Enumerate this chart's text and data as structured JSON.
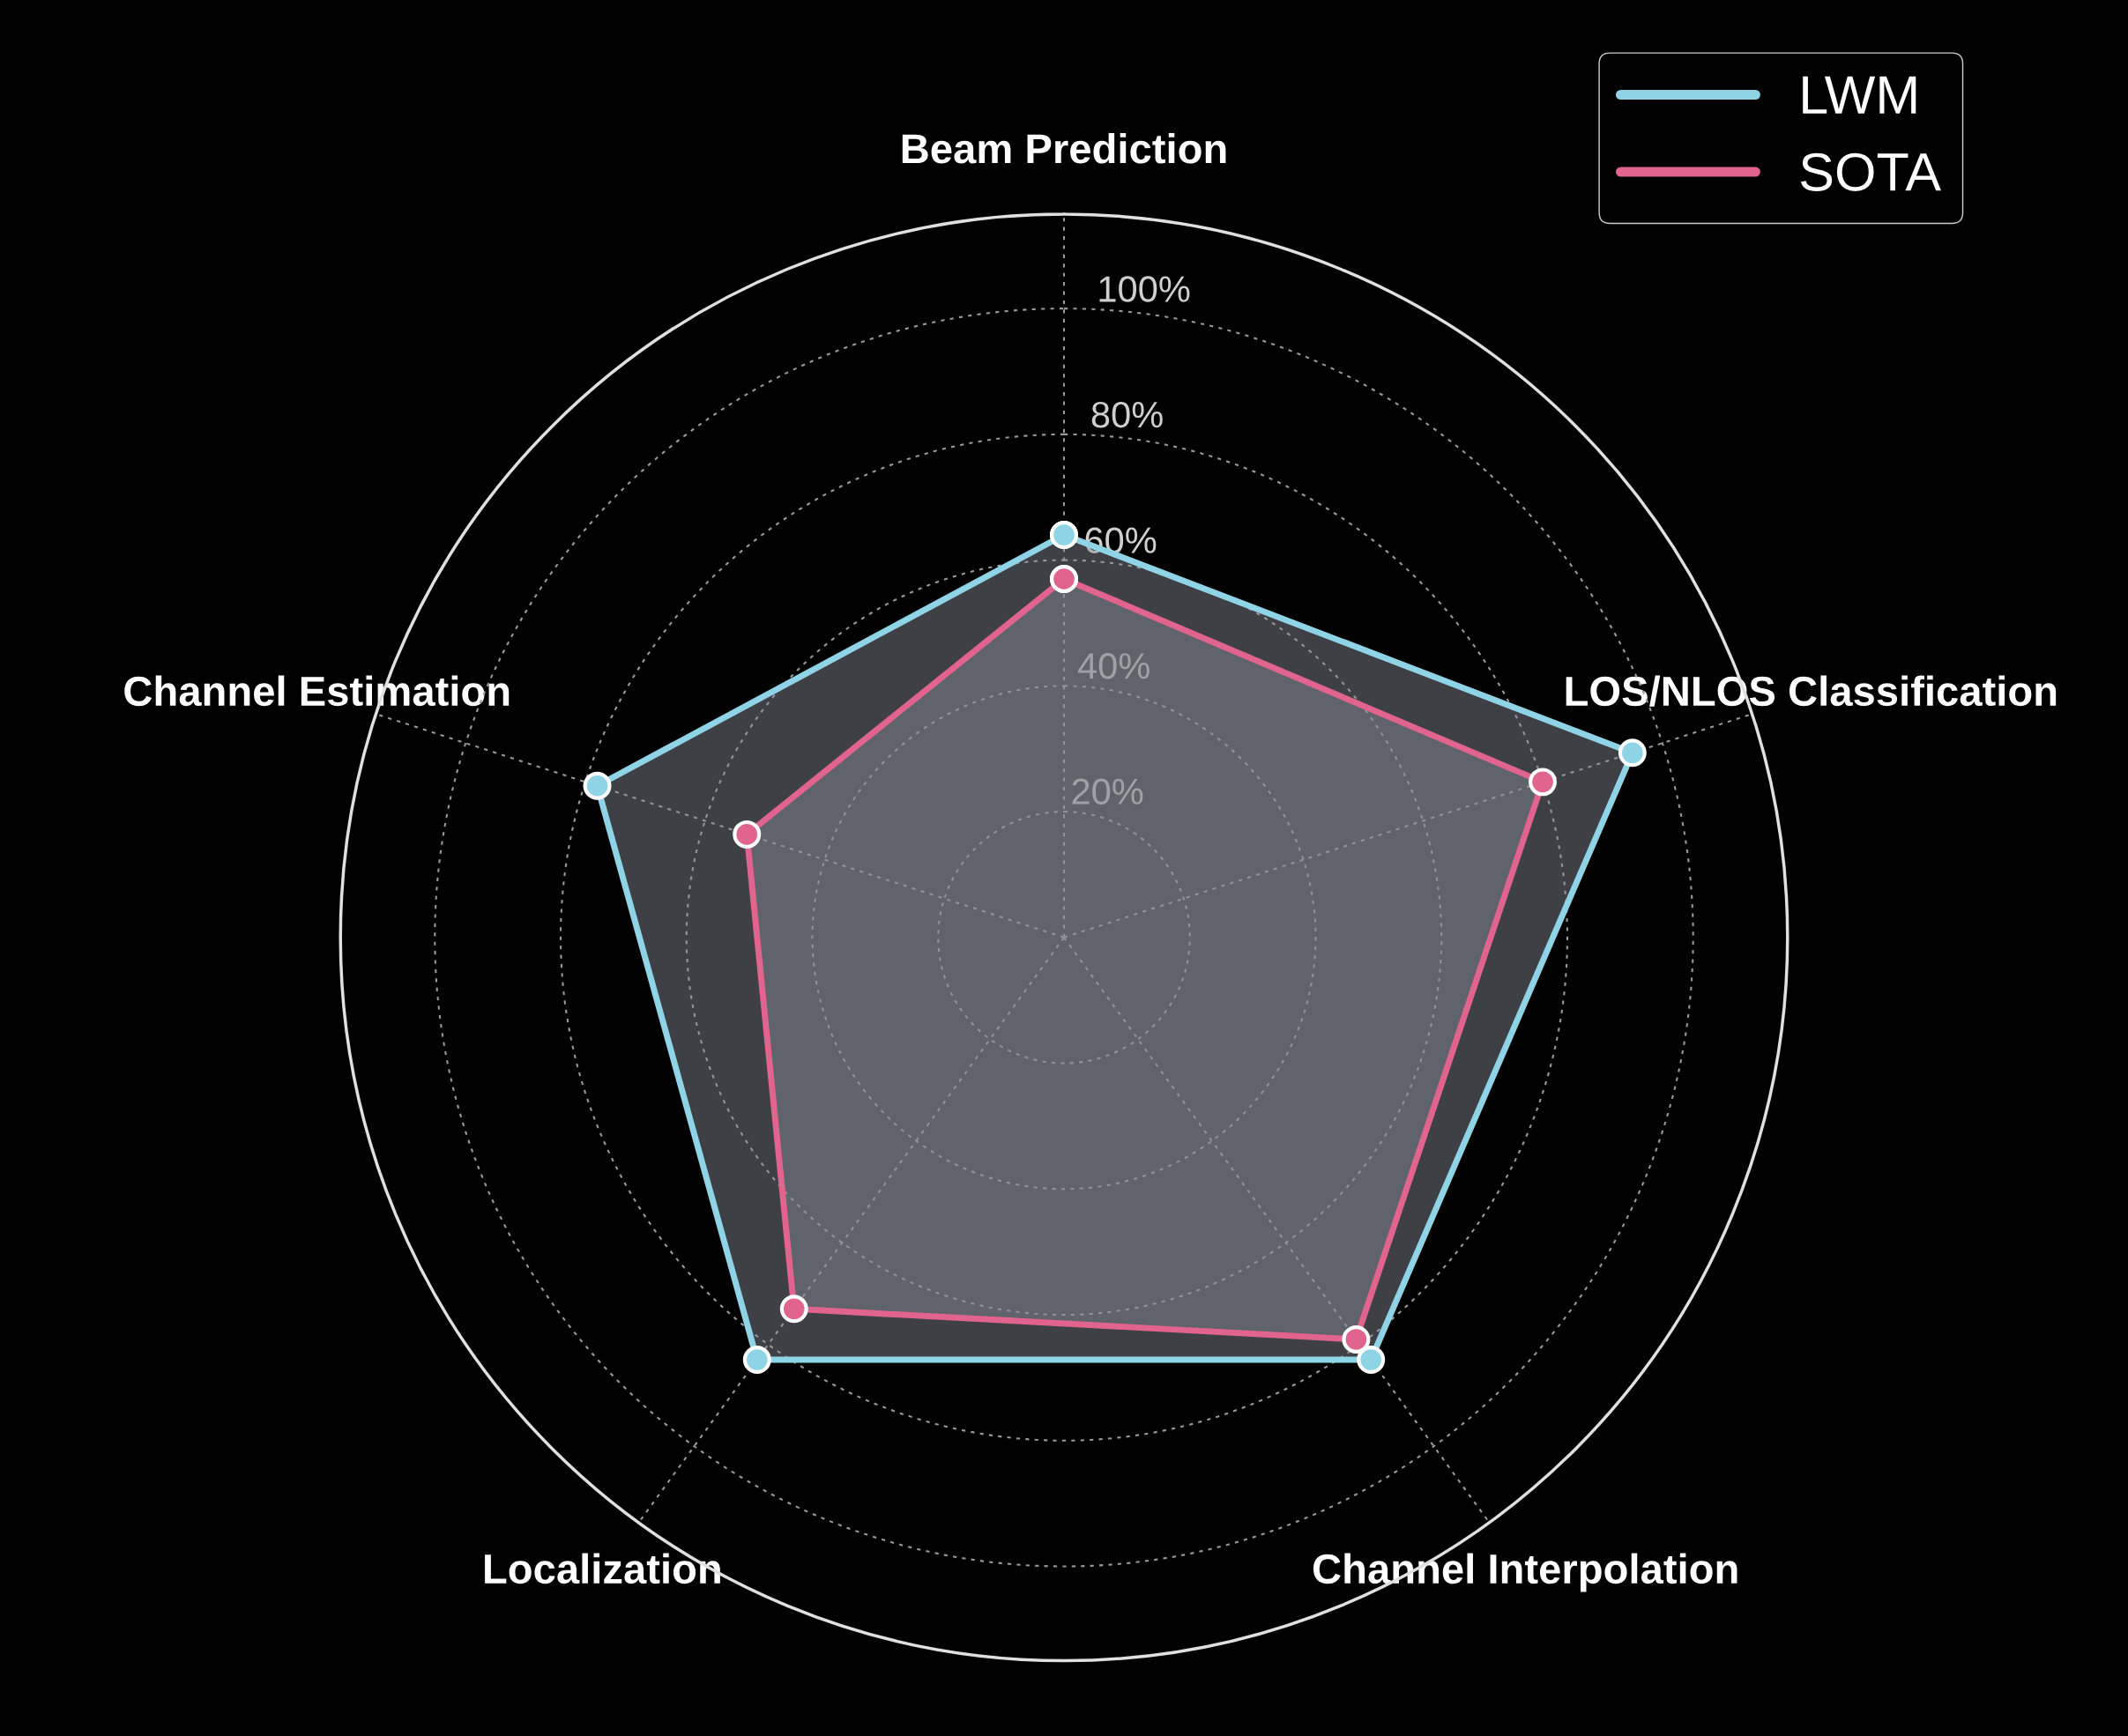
{
  "chart_data": {
    "type": "radar",
    "categories": [
      "Beam Prediction",
      "LOS/NLOS Classification",
      "Channel Interpolation",
      "Localization",
      "Channel Estimation"
    ],
    "series": [
      {
        "name": "LWM",
        "color": "#8fd3e6",
        "values": [
          64,
          95,
          83,
          83,
          78
        ]
      },
      {
        "name": "SOTA",
        "color": "#e0648e",
        "values": [
          57,
          80,
          79,
          73,
          53
        ]
      }
    ],
    "ylim": [
      0,
      115
    ],
    "yticks": [
      {
        "value": 20,
        "label": "20%"
      },
      {
        "value": 40,
        "label": "40%"
      },
      {
        "value": 60,
        "label": "60%"
      },
      {
        "value": 80,
        "label": "80%"
      },
      {
        "value": 100,
        "label": "100%"
      }
    ],
    "grid": true,
    "legend": "top right",
    "marker": "circle"
  }
}
